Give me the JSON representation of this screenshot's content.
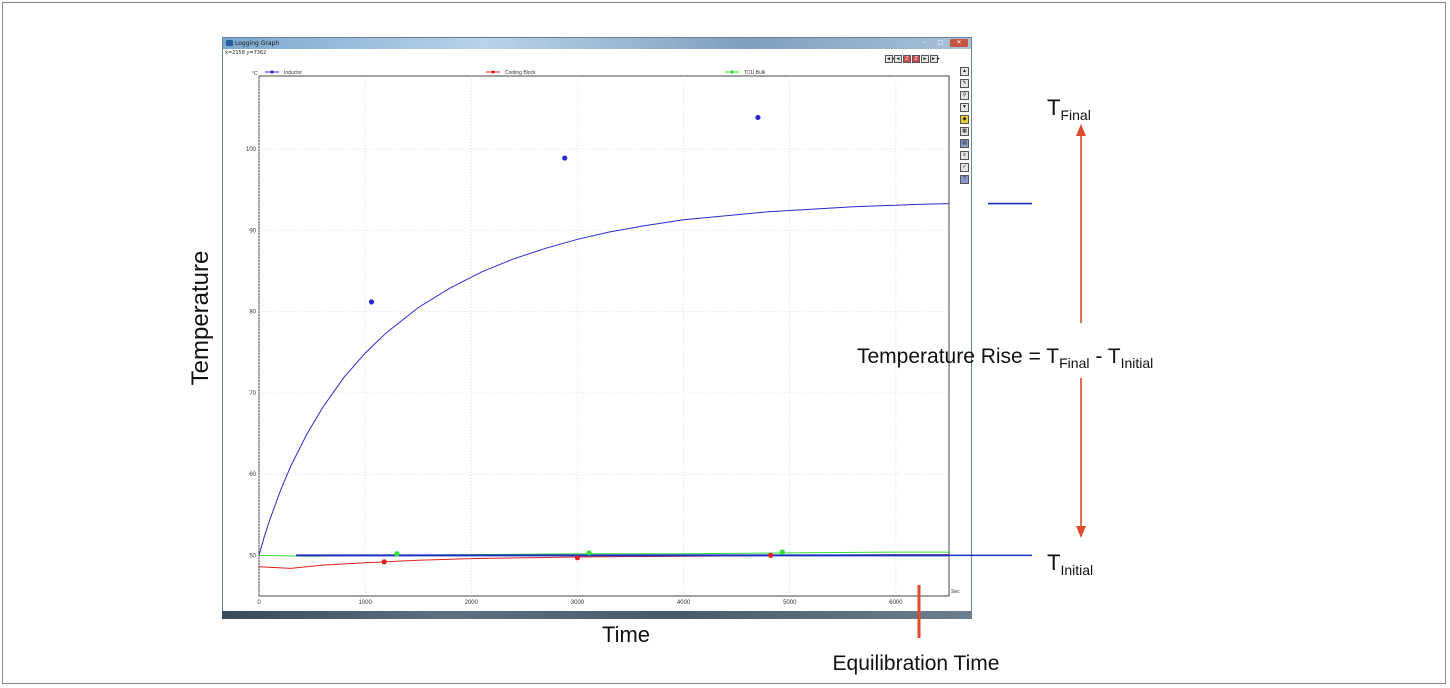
{
  "window": {
    "title": "Logging Graph",
    "readout": "x=2158 y=7362",
    "controls": {
      "minimize": "–",
      "maximize": "□",
      "close": "✕"
    },
    "nav_buttons": [
      "◄◄",
      "◄",
      "Z",
      "Z",
      "►",
      "►►"
    ],
    "side_buttons": [
      "tools-icon",
      "pen-icon",
      "zoom-icon",
      "down-icon",
      "marker-icon",
      "grid-icon",
      "print-icon",
      "list-icon",
      "check-icon",
      "help-icon"
    ]
  },
  "chart_data": {
    "type": "line",
    "yunit": "°C",
    "xunit": "Sec",
    "xlim": [
      0,
      6500
    ],
    "ylim": [
      45,
      109
    ],
    "xticks": [
      0,
      1000,
      2000,
      3000,
      4000,
      5000,
      6000
    ],
    "yticks": [
      50,
      60,
      70,
      80,
      90,
      100
    ],
    "grid": true,
    "legend_position": "top",
    "series": [
      {
        "name": "Inductor",
        "color": "#2a2ad0",
        "x": [
          0,
          50,
          100,
          200,
          300,
          450,
          600,
          800,
          1000,
          1200,
          1500,
          1800,
          2100,
          2400,
          2700,
          3000,
          3300,
          3600,
          4000,
          4400,
          4800,
          5200,
          5600,
          6000,
          6200,
          6500
        ],
        "y": [
          50.0,
          52.3,
          54.3,
          57.9,
          61.0,
          64.9,
          68.2,
          71.9,
          74.9,
          77.4,
          80.5,
          82.9,
          84.9,
          86.5,
          87.8,
          88.9,
          89.8,
          90.5,
          91.3,
          91.8,
          92.3,
          92.6,
          92.9,
          93.1,
          93.2,
          93.3
        ],
        "markers": {
          "x": [
            1060,
            2880,
            4700
          ],
          "y": [
            81.2,
            98.9,
            103.9
          ]
        }
      },
      {
        "name": "Cooling Block",
        "color": "#e02020",
        "x": [
          0,
          300,
          600,
          1000,
          1500,
          2000,
          3000,
          4000,
          5000,
          6000,
          6500
        ],
        "y": [
          48.6,
          48.4,
          48.8,
          49.1,
          49.4,
          49.6,
          49.8,
          49.9,
          50.0,
          50.1,
          50.1
        ],
        "markers": {
          "x": [
            1180,
            3000,
            4820
          ],
          "y": [
            49.2,
            49.7,
            50.0
          ]
        }
      },
      {
        "name": "TCU Bulk",
        "color": "#33dd33",
        "x": [
          0,
          500,
          1000,
          2000,
          3000,
          4000,
          5000,
          6000,
          6500
        ],
        "y": [
          50.0,
          49.9,
          50.0,
          50.1,
          50.2,
          50.2,
          50.3,
          50.4,
          50.4
        ],
        "markers": {
          "x": [
            1300,
            3110,
            4930
          ],
          "y": [
            50.2,
            50.3,
            50.4
          ]
        }
      }
    ],
    "reference_line": {
      "y": 50,
      "x_start": 350,
      "color": "#1a2fc4"
    },
    "labels": {
      "ylabel": "Temperature",
      "xlabel": "Time",
      "t_final": {
        "main": "T",
        "sub": "Final"
      },
      "t_initial": {
        "main": "T",
        "sub": "Initial"
      },
      "rise": {
        "prefix": "Temperature Rise = T",
        "sub1": "Final",
        "mid": " -  T",
        "sub2": "Initial"
      },
      "equilibration": "Equilibration Time"
    },
    "annotation_colors": {
      "arrow": "#e04a2a",
      "tfinal_line": "#1a2fc4",
      "tinitial_line": "#1a2fc4"
    }
  }
}
